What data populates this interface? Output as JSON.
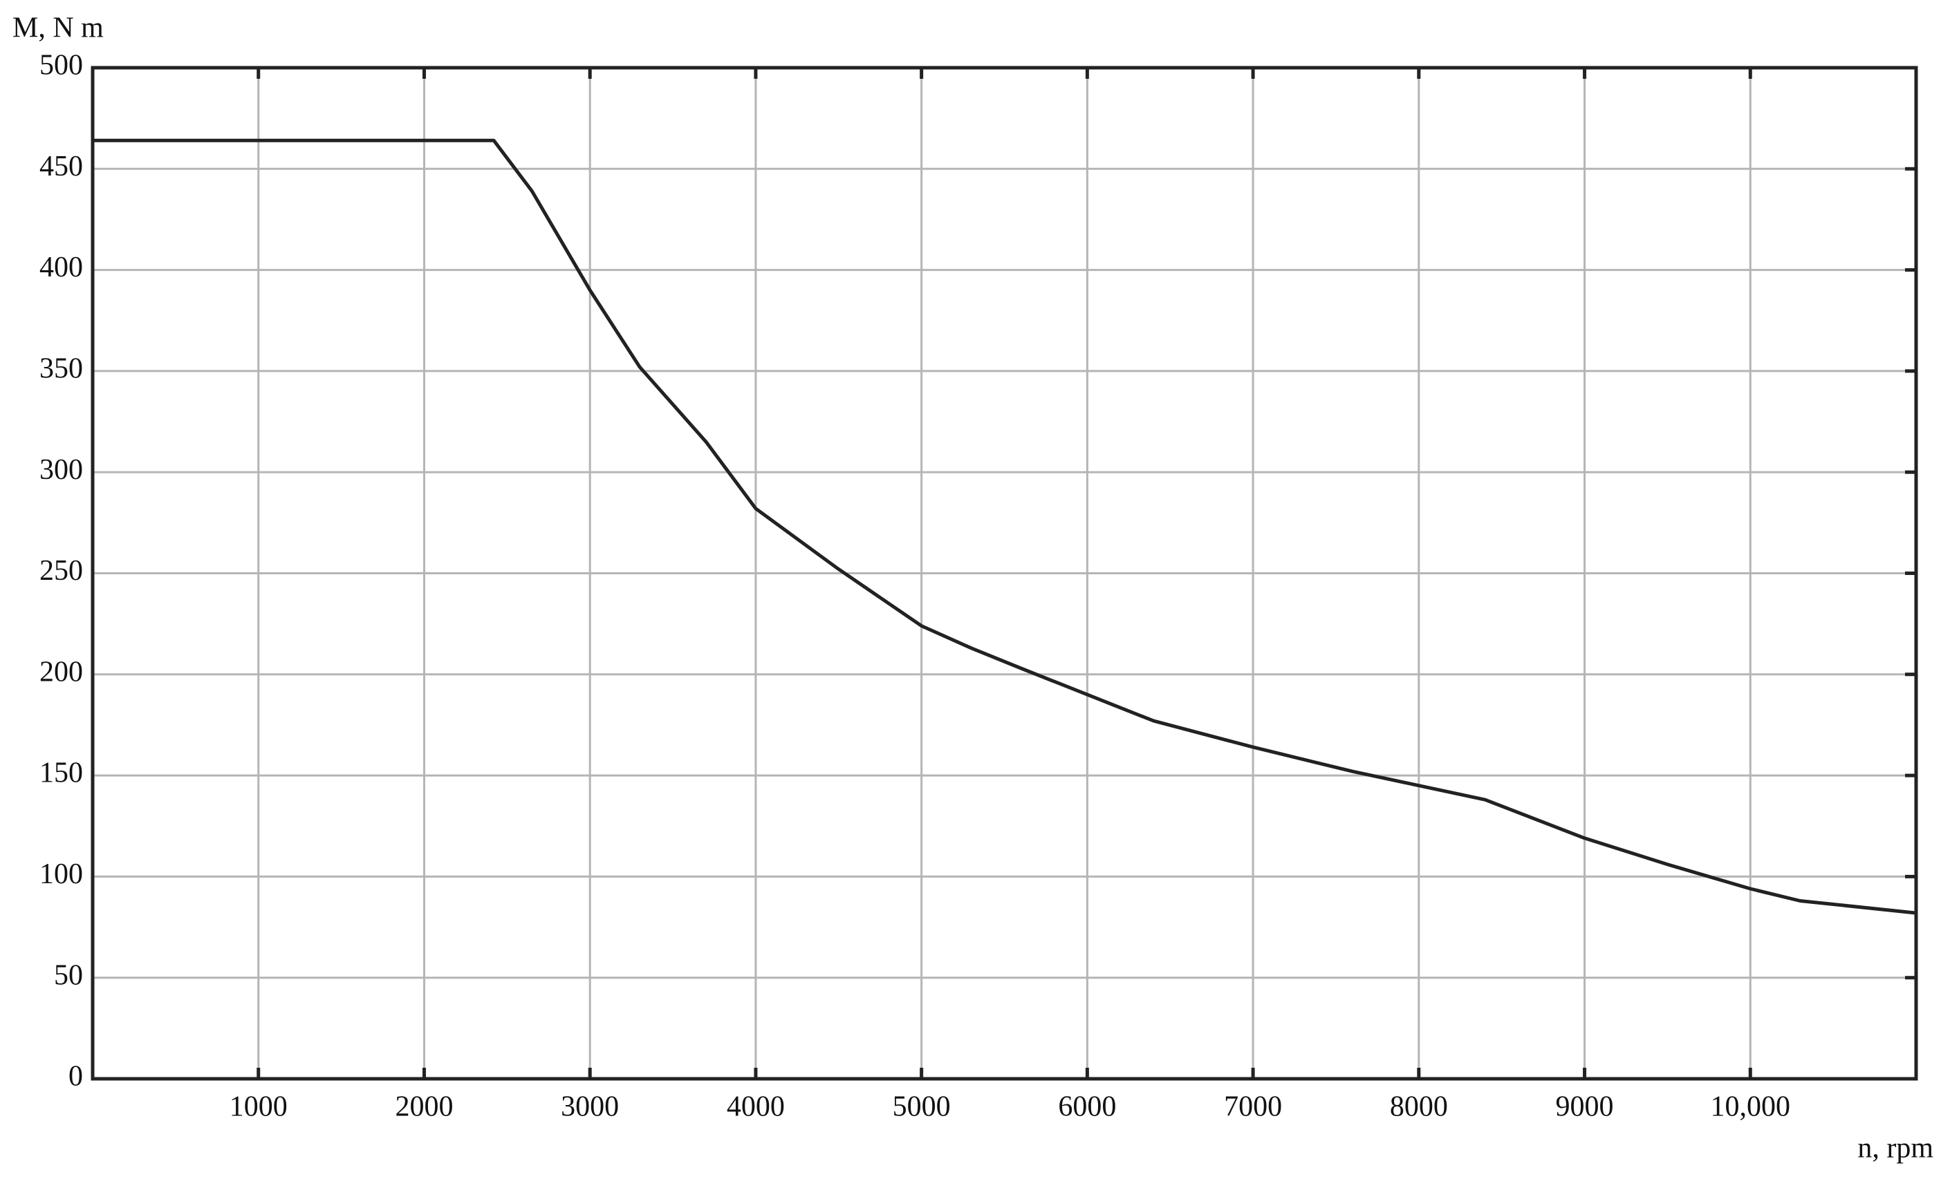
{
  "chart_data": {
    "type": "line",
    "y_label": "M, N m",
    "x_label": "n, rpm",
    "x": [
      0,
      2420,
      2650,
      3000,
      3300,
      3700,
      4000,
      4500,
      5000,
      5300,
      5600,
      6000,
      6400,
      7000,
      7600,
      8000,
      8400,
      9000,
      9500,
      10000,
      10300,
      11000
    ],
    "series": [
      {
        "color": "#222222",
        "values": [
          464,
          464,
          439,
          390,
          352,
          315,
          282,
          252,
          224,
          213,
          203,
          190,
          177,
          164,
          152,
          145,
          138,
          119,
          106,
          94,
          88,
          82
        ]
      }
    ],
    "xlim": [
      0,
      11000
    ],
    "ylim": [
      0,
      500
    ],
    "xticks": [
      1000,
      2000,
      3000,
      4000,
      5000,
      6000,
      7000,
      8000,
      9000,
      {
        "value": 10000,
        "label": "10,000"
      }
    ],
    "yticks": [
      0,
      50,
      100,
      150,
      200,
      250,
      300,
      350,
      400,
      450,
      500
    ],
    "grid": true
  }
}
